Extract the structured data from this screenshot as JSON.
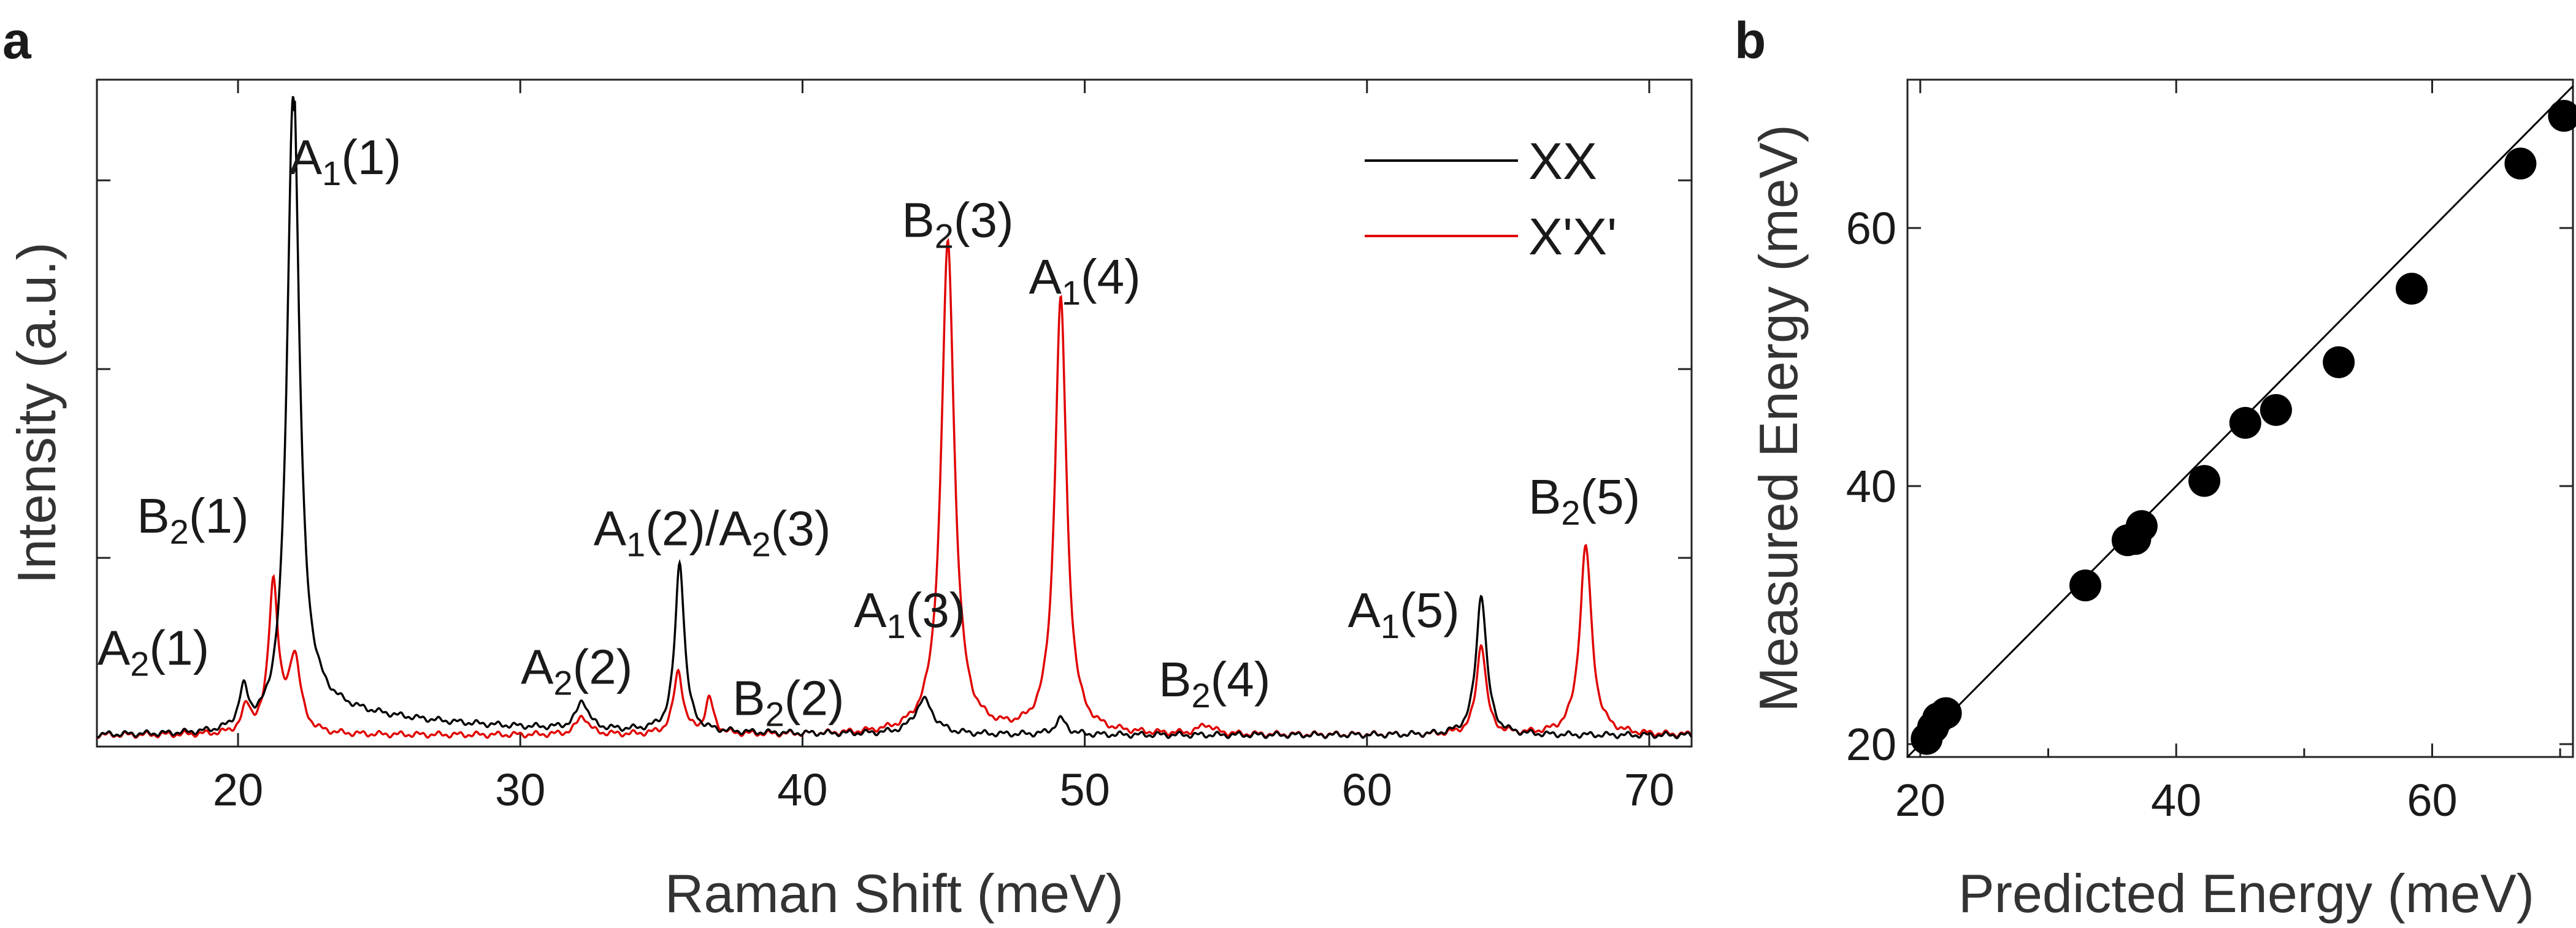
{
  "chart_data": [
    {
      "panel": "a",
      "type": "line",
      "xlabel": "Raman Shift (meV)",
      "ylabel": "Intensity (a.u.)",
      "xlim": [
        15,
        71.5
      ],
      "ylim": [
        0,
        1.06
      ],
      "xticks": [
        20,
        30,
        40,
        50,
        60,
        70
      ],
      "legend": {
        "placement": "top-right",
        "entries": [
          "XX",
          "X'X'"
        ]
      },
      "series": [
        {
          "name": "XX",
          "color": "#000000",
          "baseline": 0.018,
          "decay_tail": {
            "amplitude": 0.05,
            "start": 22.0,
            "scale": 6.0
          },
          "peaks": [
            {
              "x": 20.2,
              "h": 0.06,
              "w": 0.2
            },
            {
              "x": 21.95,
              "h": 1.02,
              "w": 0.26
            },
            {
              "x": 32.2,
              "h": 0.045,
              "w": 0.25
            },
            {
              "x": 35.65,
              "h": 0.27,
              "w": 0.2
            },
            {
              "x": 44.3,
              "h": 0.055,
              "w": 0.4
            },
            {
              "x": 49.15,
              "h": 0.025,
              "w": 0.25
            },
            {
              "x": 64.05,
              "h": 0.225,
              "w": 0.22
            }
          ]
        },
        {
          "name": "X'X'",
          "color": "#e00000",
          "baseline": 0.018,
          "decay_tail": {
            "amplitude": 0.0,
            "start": 22.0,
            "scale": 6.0
          },
          "peaks": [
            {
              "x": 20.3,
              "h": 0.04,
              "w": 0.2
            },
            {
              "x": 21.25,
              "h": 0.24,
              "w": 0.2
            },
            {
              "x": 22.0,
              "h": 0.12,
              "w": 0.25
            },
            {
              "x": 32.2,
              "h": 0.03,
              "w": 0.25
            },
            {
              "x": 35.6,
              "h": 0.1,
              "w": 0.2
            },
            {
              "x": 36.7,
              "h": 0.055,
              "w": 0.18
            },
            {
              "x": 45.15,
              "h": 0.78,
              "w": 0.28
            },
            {
              "x": 49.15,
              "h": 0.69,
              "w": 0.25
            },
            {
              "x": 54.3,
              "h": 0.015,
              "w": 0.3
            },
            {
              "x": 64.05,
              "h": 0.145,
              "w": 0.2
            },
            {
              "x": 67.75,
              "h": 0.3,
              "w": 0.25
            }
          ]
        }
      ],
      "annotations": [
        {
          "id": "A1-1",
          "main": "A",
          "sub": "1",
          "suffix": "(1)",
          "x": 23.8,
          "y": 0.91
        },
        {
          "id": "B2-1",
          "main": "B",
          "sub": "2",
          "suffix": "(1)",
          "x": 18.4,
          "y": 0.34
        },
        {
          "id": "A2-1",
          "main": "A",
          "sub": "2",
          "suffix": "(1)",
          "x": 17.0,
          "y": 0.13
        },
        {
          "id": "A1-2-A2-3",
          "main": "A",
          "sub": "1",
          "suffix": "(2)/",
          "main2": "A",
          "sub2": "2",
          "suffix2": "(3)",
          "x": 36.8,
          "y": 0.32
        },
        {
          "id": "A2-2",
          "main": "A",
          "sub": "2",
          "suffix": "(2)",
          "x": 32.0,
          "y": 0.1
        },
        {
          "id": "B2-2",
          "main": "B",
          "sub": "2",
          "suffix": "(2)",
          "x": 39.5,
          "y": 0.05
        },
        {
          "id": "A1-3",
          "main": "A",
          "sub": "1",
          "suffix": "(3)",
          "x": 43.8,
          "y": 0.19
        },
        {
          "id": "B2-3",
          "main": "B",
          "sub": "2",
          "suffix": "(3)",
          "x": 45.5,
          "y": 0.81
        },
        {
          "id": "A1-4",
          "main": "A",
          "sub": "1",
          "suffix": "(4)",
          "x": 50.0,
          "y": 0.72
        },
        {
          "id": "B2-4",
          "main": "B",
          "sub": "2",
          "suffix": "(4)",
          "x": 54.6,
          "y": 0.08
        },
        {
          "id": "A1-5",
          "main": "A",
          "sub": "1",
          "suffix": "(5)",
          "x": 61.3,
          "y": 0.19
        },
        {
          "id": "B2-5",
          "main": "B",
          "sub": "2",
          "suffix": "(5)",
          "x": 67.7,
          "y": 0.37
        }
      ]
    },
    {
      "panel": "b",
      "type": "scatter",
      "xlabel": "Predicted Energy (meV)",
      "ylabel": "Measured Energy (meV)",
      "xlim": [
        19,
        71
      ],
      "ylim": [
        19,
        71.5
      ],
      "xticks": [
        20,
        40,
        60
      ],
      "yticks": [
        20,
        40,
        60
      ],
      "reference_line": {
        "label": "y = x",
        "from": [
          19,
          19
        ],
        "to": [
          71,
          71
        ]
      },
      "points": [
        {
          "x": 20.5,
          "y": 20.4
        },
        {
          "x": 21.0,
          "y": 21.3
        },
        {
          "x": 21.4,
          "y": 22.0
        },
        {
          "x": 22.0,
          "y": 22.4
        },
        {
          "x": 32.9,
          "y": 32.3
        },
        {
          "x": 36.2,
          "y": 35.8
        },
        {
          "x": 36.8,
          "y": 35.9
        },
        {
          "x": 37.3,
          "y": 36.9
        },
        {
          "x": 42.2,
          "y": 40.4
        },
        {
          "x": 45.4,
          "y": 44.9
        },
        {
          "x": 47.8,
          "y": 45.9
        },
        {
          "x": 52.7,
          "y": 49.6
        },
        {
          "x": 58.4,
          "y": 55.3
        },
        {
          "x": 66.9,
          "y": 65.0
        },
        {
          "x": 70.3,
          "y": 68.7
        }
      ]
    }
  ],
  "panels": {
    "a": "a",
    "b": "b"
  },
  "legend": {
    "xx": "XX",
    "xpxp": "X'X'"
  }
}
